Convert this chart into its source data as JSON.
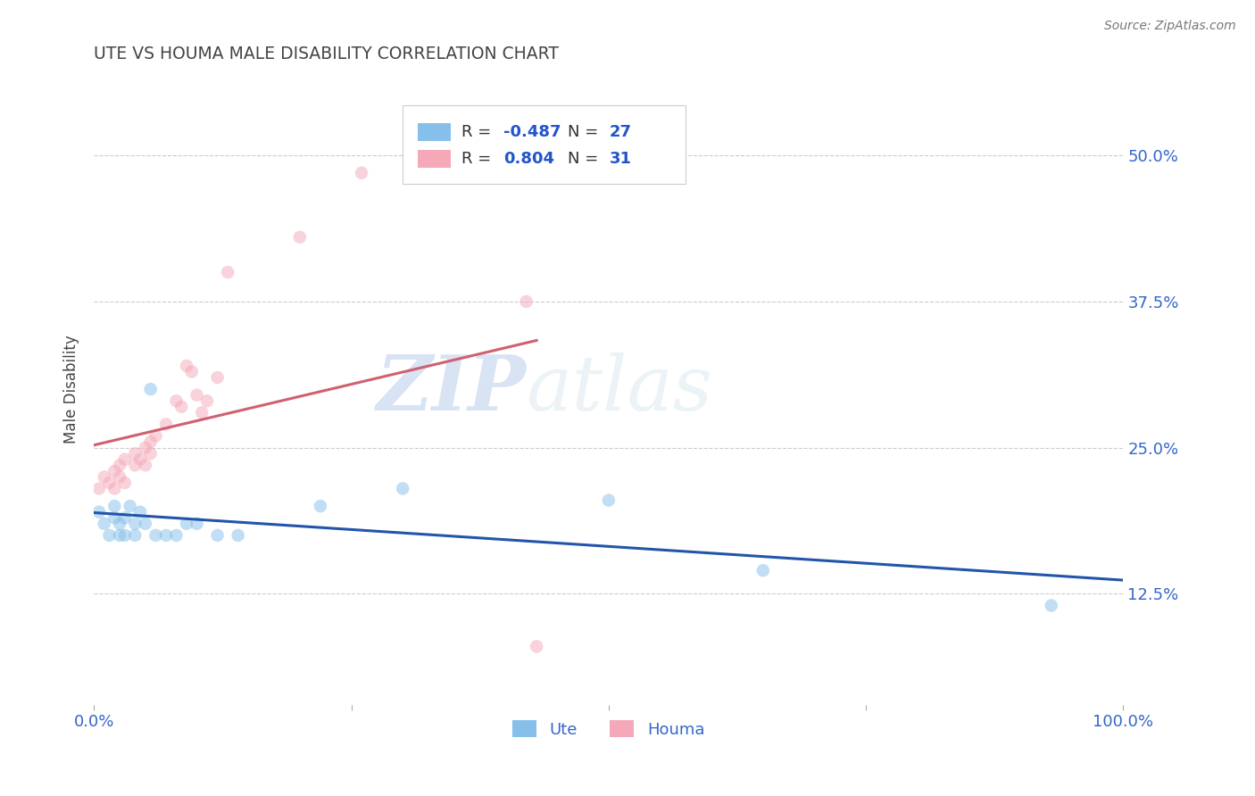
{
  "title": "UTE VS HOUMA MALE DISABILITY CORRELATION CHART",
  "source": "Source: ZipAtlas.com",
  "ylabel": "Male Disability",
  "watermark_zip": "ZIP",
  "watermark_atlas": "atlas",
  "xlim": [
    0.0,
    1.0
  ],
  "ylim": [
    0.03,
    0.57
  ],
  "xtick_positions": [
    0.0,
    0.25,
    0.5,
    0.75,
    1.0
  ],
  "xtick_labels": [
    "0.0%",
    "",
    "",
    "",
    "100.0%"
  ],
  "ytick_vals": [
    0.125,
    0.25,
    0.375,
    0.5
  ],
  "ytick_labels": [
    "12.5%",
    "25.0%",
    "37.5%",
    "50.0%"
  ],
  "ute_R": -0.487,
  "ute_N": 27,
  "houma_R": 0.804,
  "houma_N": 31,
  "ute_color": "#85BFEA",
  "houma_color": "#F5A8B8",
  "ute_line_color": "#2255AA",
  "houma_line_color": "#D06070",
  "legend_R_color": "#2255CC",
  "title_color": "#444444",
  "background_color": "#ffffff",
  "grid_color": "#cccccc",
  "ute_x": [
    0.005,
    0.01,
    0.015,
    0.02,
    0.02,
    0.025,
    0.025,
    0.03,
    0.03,
    0.035,
    0.04,
    0.04,
    0.045,
    0.05,
    0.055,
    0.06,
    0.07,
    0.08,
    0.09,
    0.1,
    0.12,
    0.14,
    0.22,
    0.3,
    0.5,
    0.65,
    0.93
  ],
  "ute_y": [
    0.195,
    0.185,
    0.175,
    0.2,
    0.19,
    0.185,
    0.175,
    0.19,
    0.175,
    0.2,
    0.185,
    0.175,
    0.195,
    0.185,
    0.3,
    0.175,
    0.175,
    0.175,
    0.185,
    0.185,
    0.175,
    0.175,
    0.2,
    0.215,
    0.205,
    0.145,
    0.115
  ],
  "houma_x": [
    0.005,
    0.01,
    0.015,
    0.02,
    0.02,
    0.025,
    0.025,
    0.03,
    0.03,
    0.04,
    0.04,
    0.045,
    0.05,
    0.05,
    0.055,
    0.055,
    0.06,
    0.07,
    0.08,
    0.085,
    0.09,
    0.095,
    0.1,
    0.105,
    0.11,
    0.12,
    0.13,
    0.2,
    0.26,
    0.42,
    0.43
  ],
  "houma_y": [
    0.215,
    0.225,
    0.22,
    0.23,
    0.215,
    0.235,
    0.225,
    0.24,
    0.22,
    0.245,
    0.235,
    0.24,
    0.25,
    0.235,
    0.255,
    0.245,
    0.26,
    0.27,
    0.29,
    0.285,
    0.32,
    0.315,
    0.295,
    0.28,
    0.29,
    0.31,
    0.4,
    0.43,
    0.485,
    0.375,
    0.08
  ],
  "dot_size": 110,
  "dot_alpha": 0.5,
  "line_width": 2.2
}
